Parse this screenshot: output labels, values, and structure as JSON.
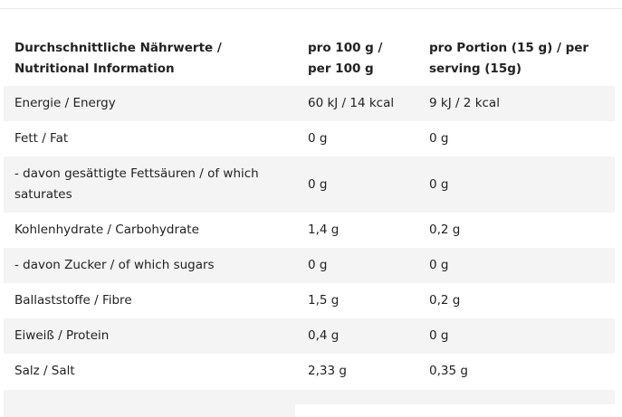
{
  "table": {
    "headers": [
      "Durchschnittliche Nährwerte / Nutritional Information",
      "pro 100 g / per 100 g",
      "pro Portion (15 g) / per serving (15g)"
    ],
    "rows": [
      [
        "Energie / Energy",
        "60 kJ / 14 kcal",
        "9 kJ / 2 kcal"
      ],
      [
        "Fett / Fat",
        "0 g",
        "0 g"
      ],
      [
        "- davon gesättigte Fettsäuren / of which saturates",
        "0 g",
        "0 g"
      ],
      [
        "Kohlenhydrate / Carbohydrate",
        "1,4 g",
        "0,2 g"
      ],
      [
        "- davon Zucker / of which sugars",
        "0 g",
        "0 g"
      ],
      [
        "Ballaststoffe / Fibre",
        "1,5 g",
        "0,2 g"
      ],
      [
        "Eiweiß / Protein",
        "0,4 g",
        "0 g"
      ],
      [
        "Salz / Salt",
        "2,33 g",
        "0,35 g"
      ]
    ]
  },
  "colors": {
    "stripe": "#f4f4f4",
    "text": "#222222"
  }
}
